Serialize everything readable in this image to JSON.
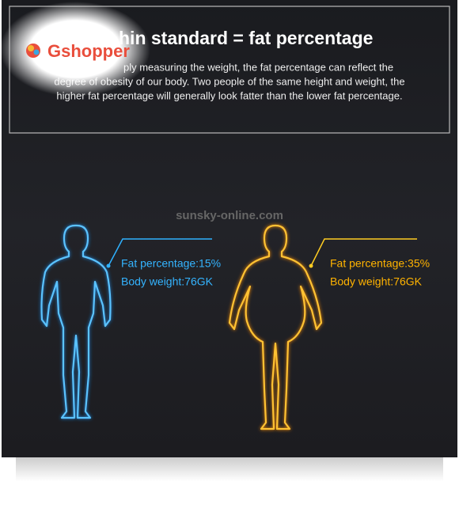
{
  "header": {
    "logo": "Gshopper",
    "title": "hin standard = fat percentage",
    "paragraph": [
      "ply measuring the weight, the fat percentage can reflect the",
      "degree of obesity of our body. Two people of the same height and weight, the",
      "higher fat percentage will generally look fatter than the lower fat percentage."
    ]
  },
  "watermark": "sunsky-online.com",
  "figures": [
    {
      "fat": "Fat percentage:15%",
      "weight": "Body weight:76GK"
    },
    {
      "fat": "Fat percentage:35%",
      "weight": "Body weight:76GK"
    }
  ]
}
